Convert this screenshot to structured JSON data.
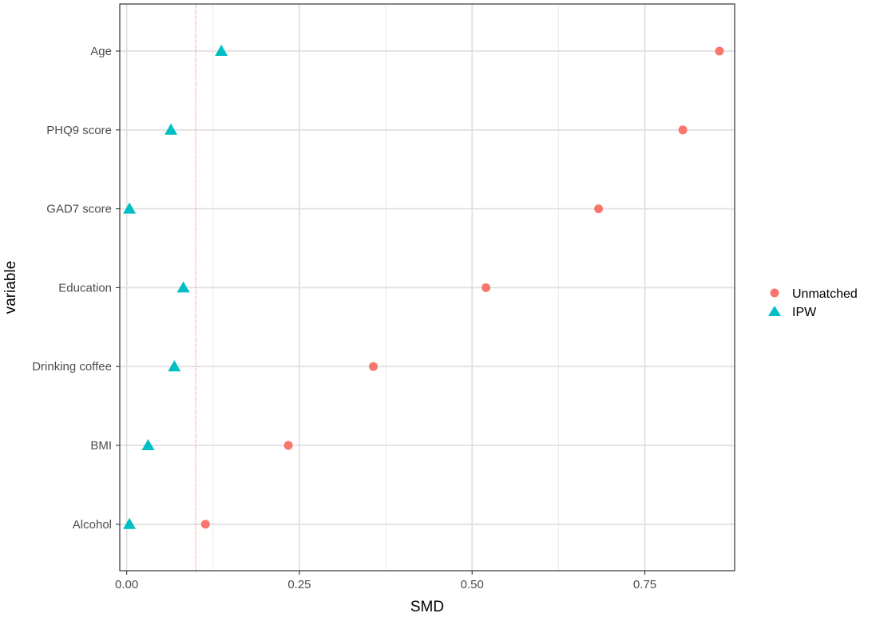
{
  "chart_data": {
    "type": "scatter",
    "xlabel": "SMD",
    "ylabel": "variable",
    "xlim": [
      -0.01,
      0.88
    ],
    "x_ticks": [
      0.0,
      0.25,
      0.5,
      0.75
    ],
    "x_tick_labels": [
      "0.00",
      "0.25",
      "0.50",
      "0.75"
    ],
    "categories": [
      "Age",
      "PHQ9 score",
      "GAD7 score",
      "Education",
      "Drinking coffee",
      "BMI",
      "Alcohol"
    ],
    "reference_line": {
      "x": 0.1,
      "color": "#F8766D",
      "style": "dotted"
    },
    "grid": true,
    "legend_position": "right",
    "series": [
      {
        "name": "Unmatched",
        "marker": "circle",
        "color": "#F8766D",
        "values": [
          0.858,
          0.805,
          0.683,
          0.52,
          0.357,
          0.234,
          0.114
        ]
      },
      {
        "name": "IPW",
        "marker": "triangle",
        "color": "#00BFC4",
        "values": [
          0.137,
          0.064,
          0.004,
          0.082,
          0.069,
          0.031,
          0.004
        ]
      }
    ]
  }
}
